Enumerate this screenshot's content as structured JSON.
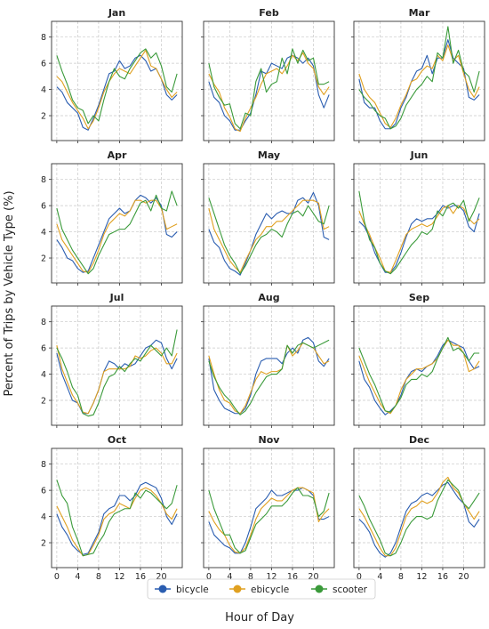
{
  "figure": {
    "ylabel": "Percent of Trips by Vehicle Type (%)",
    "xlabel": "Hour of Day",
    "legend_position": "bottom-center"
  },
  "chart_data": {
    "type": "line",
    "grid": true,
    "layout": "4x3 small multiples, shared axes",
    "x": [
      0,
      1,
      2,
      3,
      4,
      5,
      6,
      7,
      8,
      9,
      10,
      11,
      12,
      13,
      14,
      15,
      16,
      17,
      18,
      19,
      20,
      21,
      22,
      23
    ],
    "xticks": [
      0,
      4,
      8,
      12,
      16,
      20
    ],
    "xlim": [
      -1,
      24
    ],
    "yticks": [
      2,
      4,
      6,
      8
    ],
    "ylim": [
      0.1,
      9.2
    ],
    "series_meta": [
      {
        "name": "bicycle",
        "color": "#2a5db0"
      },
      {
        "name": "ebicycle",
        "color": "#e0a020"
      },
      {
        "name": "scooter",
        "color": "#3a9a3a"
      }
    ],
    "panels": [
      {
        "title": "Jan",
        "bicycle": [
          4.2,
          3.8,
          3.0,
          2.6,
          2.2,
          1.1,
          0.9,
          1.8,
          2.8,
          4.0,
          5.2,
          5.4,
          6.2,
          5.6,
          5.8,
          6.4,
          6.6,
          6.2,
          5.4,
          5.6,
          4.8,
          3.6,
          3.2,
          3.6
        ],
        "ebicycle": [
          5.0,
          4.6,
          3.8,
          3.0,
          2.4,
          1.8,
          1.0,
          1.6,
          2.6,
          3.8,
          4.6,
          5.2,
          5.6,
          5.4,
          5.2,
          5.8,
          6.4,
          7.0,
          5.8,
          5.6,
          4.8,
          4.0,
          3.4,
          3.8
        ],
        "scooter": [
          6.6,
          5.4,
          4.4,
          3.2,
          2.6,
          2.4,
          1.4,
          2.0,
          1.6,
          3.2,
          4.6,
          5.6,
          5.0,
          4.8,
          5.6,
          6.2,
          6.8,
          7.1,
          6.4,
          6.8,
          5.8,
          4.2,
          3.8,
          5.2
        ]
      },
      {
        "title": "Feb",
        "bicycle": [
          4.6,
          3.4,
          3.0,
          2.0,
          1.6,
          0.9,
          0.9,
          1.6,
          2.2,
          3.6,
          5.4,
          5.2,
          6.0,
          5.8,
          5.6,
          6.4,
          6.6,
          6.4,
          6.0,
          6.4,
          5.8,
          3.6,
          2.6,
          3.6
        ],
        "ebicycle": [
          5.2,
          4.4,
          3.8,
          2.6,
          1.9,
          1.0,
          0.8,
          1.8,
          2.6,
          3.4,
          4.4,
          5.2,
          5.4,
          5.6,
          5.2,
          5.8,
          6.6,
          6.2,
          6.8,
          6.0,
          5.6,
          4.2,
          3.6,
          4.2
        ],
        "scooter": [
          6.0,
          4.2,
          3.4,
          2.8,
          2.9,
          1.4,
          1.0,
          2.2,
          2.0,
          4.6,
          5.6,
          3.8,
          4.4,
          4.6,
          6.4,
          5.2,
          7.1,
          6.0,
          7.0,
          6.2,
          6.4,
          4.4,
          4.4,
          4.6
        ]
      },
      {
        "title": "Mar",
        "bicycle": [
          4.8,
          3.0,
          2.6,
          2.6,
          1.6,
          1.0,
          1.0,
          1.4,
          2.6,
          3.4,
          4.6,
          5.4,
          5.6,
          6.6,
          5.2,
          6.4,
          6.4,
          7.8,
          6.4,
          6.0,
          5.6,
          3.4,
          3.2,
          3.6
        ],
        "ebicycle": [
          5.2,
          4.0,
          3.4,
          3.0,
          2.2,
          1.4,
          1.1,
          1.8,
          2.8,
          3.6,
          4.6,
          4.8,
          5.4,
          5.8,
          5.6,
          6.6,
          6.2,
          7.4,
          6.2,
          6.6,
          5.2,
          4.0,
          3.4,
          4.2
        ],
        "scooter": [
          4.0,
          3.4,
          3.0,
          2.4,
          2.0,
          1.8,
          1.0,
          1.2,
          1.8,
          2.8,
          3.4,
          4.0,
          4.4,
          5.0,
          4.6,
          6.8,
          6.4,
          8.8,
          6.0,
          7.0,
          5.4,
          5.0,
          3.8,
          5.4
        ]
      },
      {
        "title": "Apr",
        "bicycle": [
          3.4,
          2.8,
          2.0,
          1.8,
          1.2,
          0.9,
          1.0,
          2.0,
          3.0,
          4.0,
          5.0,
          5.4,
          5.8,
          5.4,
          5.6,
          6.4,
          6.8,
          6.6,
          6.2,
          6.6,
          6.0,
          3.8,
          3.6,
          4.0
        ],
        "ebicycle": [
          4.6,
          3.4,
          2.8,
          2.2,
          1.6,
          1.0,
          0.9,
          1.6,
          2.6,
          3.8,
          4.6,
          5.0,
          5.4,
          5.2,
          5.6,
          6.4,
          6.4,
          6.2,
          6.4,
          6.4,
          5.8,
          4.2,
          4.4,
          4.6
        ],
        "scooter": [
          5.8,
          4.2,
          3.4,
          2.6,
          2.0,
          1.4,
          0.8,
          1.2,
          2.2,
          3.0,
          3.8,
          4.0,
          4.2,
          4.2,
          4.6,
          5.4,
          6.2,
          6.4,
          5.6,
          6.8,
          5.8,
          5.6,
          7.1,
          6.0
        ]
      },
      {
        "title": "May",
        "bicycle": [
          4.2,
          3.2,
          2.8,
          1.8,
          1.2,
          1.0,
          0.7,
          1.6,
          2.6,
          3.8,
          4.6,
          5.4,
          5.0,
          5.4,
          5.6,
          5.4,
          5.4,
          6.4,
          6.6,
          6.2,
          7.0,
          6.0,
          3.6,
          3.4
        ],
        "ebicycle": [
          5.8,
          4.2,
          3.4,
          2.6,
          1.8,
          1.3,
          0.9,
          1.8,
          2.6,
          3.4,
          3.8,
          4.4,
          4.4,
          4.8,
          4.8,
          5.2,
          5.6,
          6.0,
          6.4,
          6.4,
          6.4,
          6.2,
          4.2,
          4.4
        ],
        "scooter": [
          6.6,
          5.4,
          4.2,
          3.0,
          2.2,
          1.6,
          0.8,
          1.4,
          2.2,
          3.0,
          3.6,
          3.8,
          4.2,
          4.0,
          3.6,
          4.6,
          5.4,
          5.6,
          5.2,
          6.0,
          5.4,
          4.8,
          4.6,
          6.0
        ]
      },
      {
        "title": "Jun",
        "bicycle": [
          4.8,
          4.4,
          3.6,
          2.4,
          1.6,
          0.9,
          0.9,
          1.4,
          2.4,
          3.6,
          4.6,
          5.0,
          4.8,
          5.0,
          5.0,
          5.4,
          6.0,
          5.8,
          6.0,
          6.0,
          5.6,
          4.4,
          4.0,
          5.4
        ],
        "ebicycle": [
          5.6,
          4.6,
          3.8,
          2.8,
          2.0,
          1.0,
          0.9,
          1.8,
          2.8,
          3.8,
          4.2,
          4.4,
          4.6,
          4.4,
          4.6,
          5.2,
          5.8,
          6.0,
          5.4,
          6.0,
          5.8,
          5.0,
          4.6,
          5.0
        ],
        "scooter": [
          7.1,
          4.8,
          3.4,
          2.8,
          1.6,
          1.0,
          0.8,
          1.2,
          1.8,
          2.4,
          3.0,
          3.4,
          4.0,
          3.8,
          4.2,
          5.6,
          5.2,
          6.0,
          6.2,
          5.8,
          6.4,
          4.8,
          5.6,
          6.6
        ]
      },
      {
        "title": "Jul",
        "bicycle": [
          5.6,
          4.0,
          3.0,
          2.0,
          1.8,
          1.0,
          1.0,
          1.8,
          2.8,
          4.2,
          5.0,
          4.8,
          4.4,
          4.8,
          4.6,
          4.8,
          5.4,
          6.0,
          6.2,
          6.6,
          6.4,
          5.2,
          4.4,
          5.2
        ],
        "ebicycle": [
          6.2,
          4.4,
          3.4,
          2.4,
          1.8,
          1.1,
          1.0,
          1.8,
          2.8,
          4.2,
          4.4,
          4.4,
          4.4,
          4.4,
          4.6,
          5.4,
          5.2,
          5.4,
          5.8,
          6.0,
          5.6,
          4.8,
          4.8,
          5.6
        ],
        "scooter": [
          6.0,
          5.2,
          4.2,
          3.0,
          2.4,
          1.0,
          0.8,
          0.9,
          1.8,
          3.0,
          3.8,
          4.0,
          4.6,
          4.2,
          4.8,
          5.2,
          5.0,
          5.6,
          6.2,
          5.8,
          5.4,
          6.0,
          5.4,
          7.4
        ]
      },
      {
        "title": "Aug",
        "bicycle": [
          5.2,
          2.8,
          2.0,
          1.4,
          1.2,
          1.0,
          1.0,
          1.4,
          2.4,
          4.0,
          5.0,
          5.2,
          5.2,
          5.2,
          4.8,
          5.6,
          6.0,
          5.6,
          6.6,
          6.8,
          6.4,
          5.0,
          4.6,
          5.2
        ],
        "ebicycle": [
          5.4,
          4.0,
          2.8,
          2.0,
          1.8,
          1.2,
          1.0,
          1.6,
          2.6,
          3.6,
          4.2,
          4.0,
          4.2,
          4.2,
          4.4,
          6.2,
          5.4,
          5.8,
          6.4,
          6.2,
          6.0,
          5.4,
          4.8,
          5.0
        ],
        "scooter": [
          5.0,
          3.8,
          3.0,
          2.4,
          2.0,
          1.4,
          0.9,
          1.2,
          1.8,
          2.6,
          3.2,
          3.8,
          4.0,
          4.0,
          4.4,
          6.2,
          5.6,
          6.2,
          6.4,
          6.2,
          6.0,
          6.2,
          6.4,
          6.6
        ]
      },
      {
        "title": "Sep",
        "bicycle": [
          5.0,
          3.6,
          3.0,
          2.0,
          1.4,
          0.9,
          1.2,
          1.6,
          2.4,
          3.6,
          4.2,
          4.4,
          4.2,
          4.6,
          4.8,
          5.4,
          6.2,
          6.6,
          6.4,
          6.2,
          6.0,
          5.0,
          4.4,
          4.6
        ],
        "ebicycle": [
          5.4,
          4.4,
          3.4,
          2.6,
          1.8,
          1.2,
          1.0,
          1.6,
          2.8,
          3.6,
          4.0,
          4.4,
          4.4,
          4.6,
          4.8,
          5.2,
          6.0,
          6.6,
          6.2,
          6.2,
          5.6,
          4.2,
          4.4,
          5.0
        ],
        "scooter": [
          6.0,
          5.0,
          4.0,
          3.2,
          2.2,
          1.2,
          1.1,
          1.6,
          2.2,
          3.2,
          3.6,
          3.6,
          4.0,
          3.8,
          4.2,
          5.2,
          6.0,
          6.8,
          5.8,
          6.0,
          5.6,
          5.0,
          5.6,
          5.6
        ]
      },
      {
        "title": "Oct",
        "bicycle": [
          4.2,
          3.2,
          2.6,
          1.8,
          1.4,
          1.1,
          1.2,
          2.0,
          2.8,
          4.2,
          4.6,
          4.8,
          5.6,
          5.6,
          5.2,
          5.6,
          6.4,
          6.6,
          6.4,
          6.2,
          5.4,
          4.0,
          3.4,
          4.2
        ],
        "ebicycle": [
          4.8,
          4.0,
          3.2,
          2.2,
          1.6,
          1.0,
          1.1,
          1.8,
          2.6,
          3.8,
          4.2,
          4.4,
          5.0,
          4.8,
          4.6,
          5.4,
          6.0,
          6.2,
          6.0,
          5.6,
          5.0,
          4.2,
          3.8,
          4.6
        ],
        "scooter": [
          6.8,
          5.6,
          5.0,
          3.2,
          2.2,
          1.0,
          1.1,
          1.2,
          2.0,
          2.6,
          3.6,
          4.2,
          4.4,
          4.6,
          4.6,
          5.8,
          5.4,
          6.0,
          5.8,
          5.4,
          5.0,
          4.6,
          5.0,
          6.4
        ]
      },
      {
        "title": "Nov",
        "bicycle": [
          3.6,
          2.6,
          2.2,
          1.8,
          1.6,
          1.2,
          1.2,
          2.0,
          3.2,
          4.6,
          5.0,
          5.4,
          6.0,
          5.6,
          5.6,
          5.8,
          6.0,
          6.0,
          6.2,
          6.0,
          5.6,
          3.8,
          3.8,
          4.0
        ],
        "ebicycle": [
          4.4,
          3.6,
          3.0,
          2.6,
          1.8,
          1.3,
          1.2,
          1.6,
          2.6,
          3.8,
          4.6,
          5.0,
          5.4,
          5.2,
          5.2,
          5.6,
          6.0,
          6.2,
          6.2,
          6.0,
          5.8,
          3.6,
          4.2,
          4.6
        ],
        "scooter": [
          6.0,
          4.6,
          3.6,
          2.6,
          2.6,
          1.6,
          1.2,
          1.4,
          2.4,
          3.4,
          3.8,
          4.2,
          4.8,
          4.8,
          4.8,
          5.2,
          5.8,
          6.2,
          5.6,
          5.6,
          5.4,
          4.0,
          4.4,
          5.8
        ]
      },
      {
        "title": "Dec",
        "bicycle": [
          3.8,
          3.4,
          2.8,
          1.8,
          1.2,
          0.9,
          1.2,
          2.0,
          3.2,
          4.4,
          5.0,
          5.2,
          5.6,
          5.8,
          5.6,
          6.0,
          6.4,
          6.6,
          6.0,
          5.4,
          5.0,
          3.6,
          3.2,
          3.8
        ],
        "ebicycle": [
          4.6,
          4.0,
          3.2,
          2.4,
          1.6,
          1.0,
          1.0,
          1.6,
          2.8,
          4.0,
          4.6,
          4.8,
          5.2,
          5.0,
          5.2,
          5.8,
          6.6,
          7.0,
          6.2,
          5.8,
          5.0,
          4.4,
          3.8,
          4.4
        ],
        "scooter": [
          5.6,
          4.8,
          3.8,
          3.0,
          2.2,
          1.2,
          1.0,
          1.2,
          2.0,
          3.0,
          3.6,
          4.0,
          4.0,
          3.8,
          4.0,
          5.2,
          6.0,
          6.8,
          6.4,
          6.0,
          5.0,
          4.6,
          5.2,
          5.8
        ]
      }
    ]
  }
}
